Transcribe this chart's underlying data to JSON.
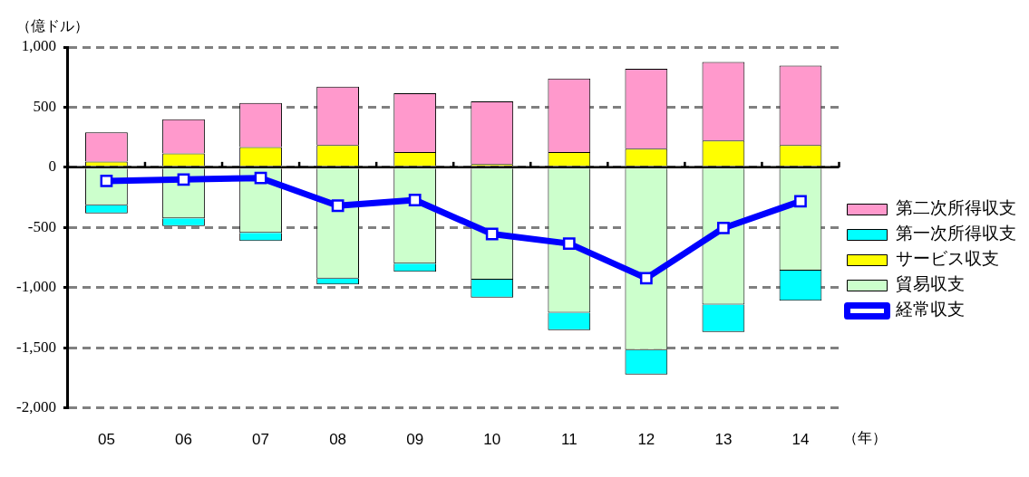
{
  "chart_data": {
    "type": "bar",
    "stacked": true,
    "xlabel": "（年）",
    "ylabel": "（億ドル）",
    "categories": [
      "05",
      "06",
      "07",
      "08",
      "09",
      "10",
      "11",
      "12",
      "13",
      "14"
    ],
    "series": [
      {
        "name": "貿易収支",
        "color": "#ccffcc",
        "values": [
          -315,
          -425,
          -545,
          -925,
          -800,
          -934,
          -1209,
          -1519,
          -1141,
          -859
        ]
      },
      {
        "name": "サービス収支",
        "color": "#ffff00",
        "values": [
          47,
          115,
          169,
          185,
          127,
          28,
          127,
          155,
          223,
          185
        ]
      },
      {
        "name": "第一次所得収支",
        "color": "#00ffff",
        "values": [
          -68,
          -63,
          -68,
          -49,
          -68,
          -148,
          -145,
          -204,
          -227,
          -251
        ]
      },
      {
        "name": "第二次所得収支",
        "color": "#ff99cc",
        "values": [
          244,
          284,
          366,
          486,
          490,
          521,
          612,
          664,
          652,
          660
        ]
      },
      {
        "name": "経常収支",
        "type": "line",
        "color": "#0000ff",
        "marker": "square",
        "line_style": "solid",
        "values": [
          -113,
          -101,
          -89,
          -319,
          -272,
          -554,
          -634,
          -922,
          -505,
          -282
        ]
      }
    ],
    "ylim": [
      -2000,
      1000
    ],
    "yticks": [
      {
        "value": -2000,
        "label": "-2,000"
      },
      {
        "value": -1500,
        "label": "-1,500"
      },
      {
        "value": -1000,
        "label": "-1,000"
      },
      -500,
      0,
      500,
      {
        "value": 1000,
        "label": "1,000"
      }
    ],
    "grid": "y",
    "legend": "right"
  }
}
